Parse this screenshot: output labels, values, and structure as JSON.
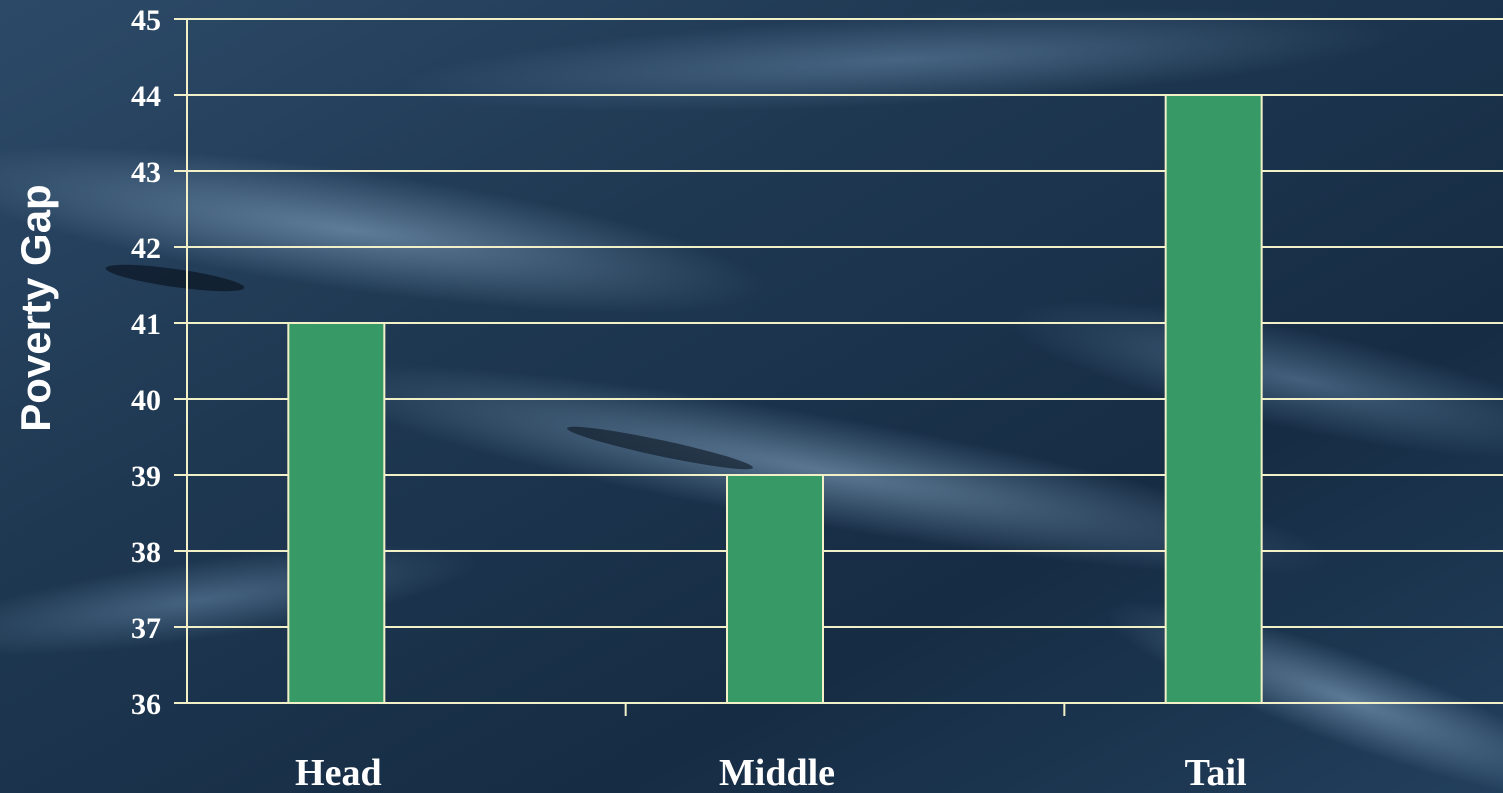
{
  "chart_data": {
    "type": "bar",
    "categories": [
      "Head",
      "Middle",
      "Tail"
    ],
    "values": [
      41,
      39,
      44
    ],
    "xlabel": "",
    "ylabel": "Poverty Gap",
    "ylim": [
      36,
      45
    ],
    "yticks": [
      36,
      37,
      38,
      39,
      40,
      41,
      42,
      43,
      44,
      45
    ],
    "grid": true,
    "legend": "none"
  },
  "colors": {
    "bar": "#379966",
    "bar_border": "#f2f0c8",
    "grid": "#f2f0c8",
    "text": "#ffffff"
  }
}
